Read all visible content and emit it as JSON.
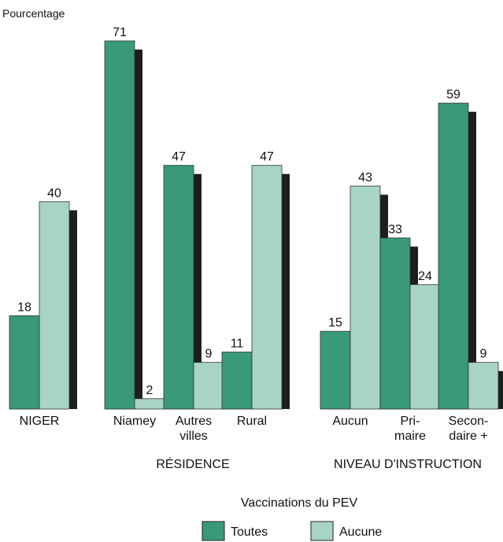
{
  "chart_data": {
    "type": "bar",
    "ylabel": "Pourcentage",
    "ylim": [
      0,
      75
    ],
    "grid": false,
    "groups": [
      {
        "label": "",
        "categories": [
          {
            "label": [
              "NIGER"
            ],
            "values": [
              18,
              40
            ]
          }
        ]
      },
      {
        "label": "RÉSIDENCE",
        "categories": [
          {
            "label": [
              "Niamey"
            ],
            "values": [
              71,
              2
            ]
          },
          {
            "label": [
              "Autres",
              "villes"
            ],
            "values": [
              47,
              9
            ]
          },
          {
            "label": [
              "Rural"
            ],
            "values": [
              11,
              47
            ]
          }
        ]
      },
      {
        "label": "NIVEAU D'INSTRUCTION",
        "categories": [
          {
            "label": [
              "Aucun"
            ],
            "values": [
              15,
              43
            ]
          },
          {
            "label": [
              "Pri-",
              "maire"
            ],
            "values": [
              33,
              24
            ]
          },
          {
            "label": [
              "Secon-",
              "daire +"
            ],
            "values": [
              59,
              9
            ]
          }
        ]
      }
    ],
    "series": [
      {
        "name": "Toutes",
        "color": "#3a9a78"
      },
      {
        "name": "Aucune",
        "color": "#a8d4c4"
      }
    ],
    "shadow_color": "#1e1e1e",
    "legend": {
      "title": "Vaccinations du PEV",
      "position": "bottom-center"
    }
  }
}
